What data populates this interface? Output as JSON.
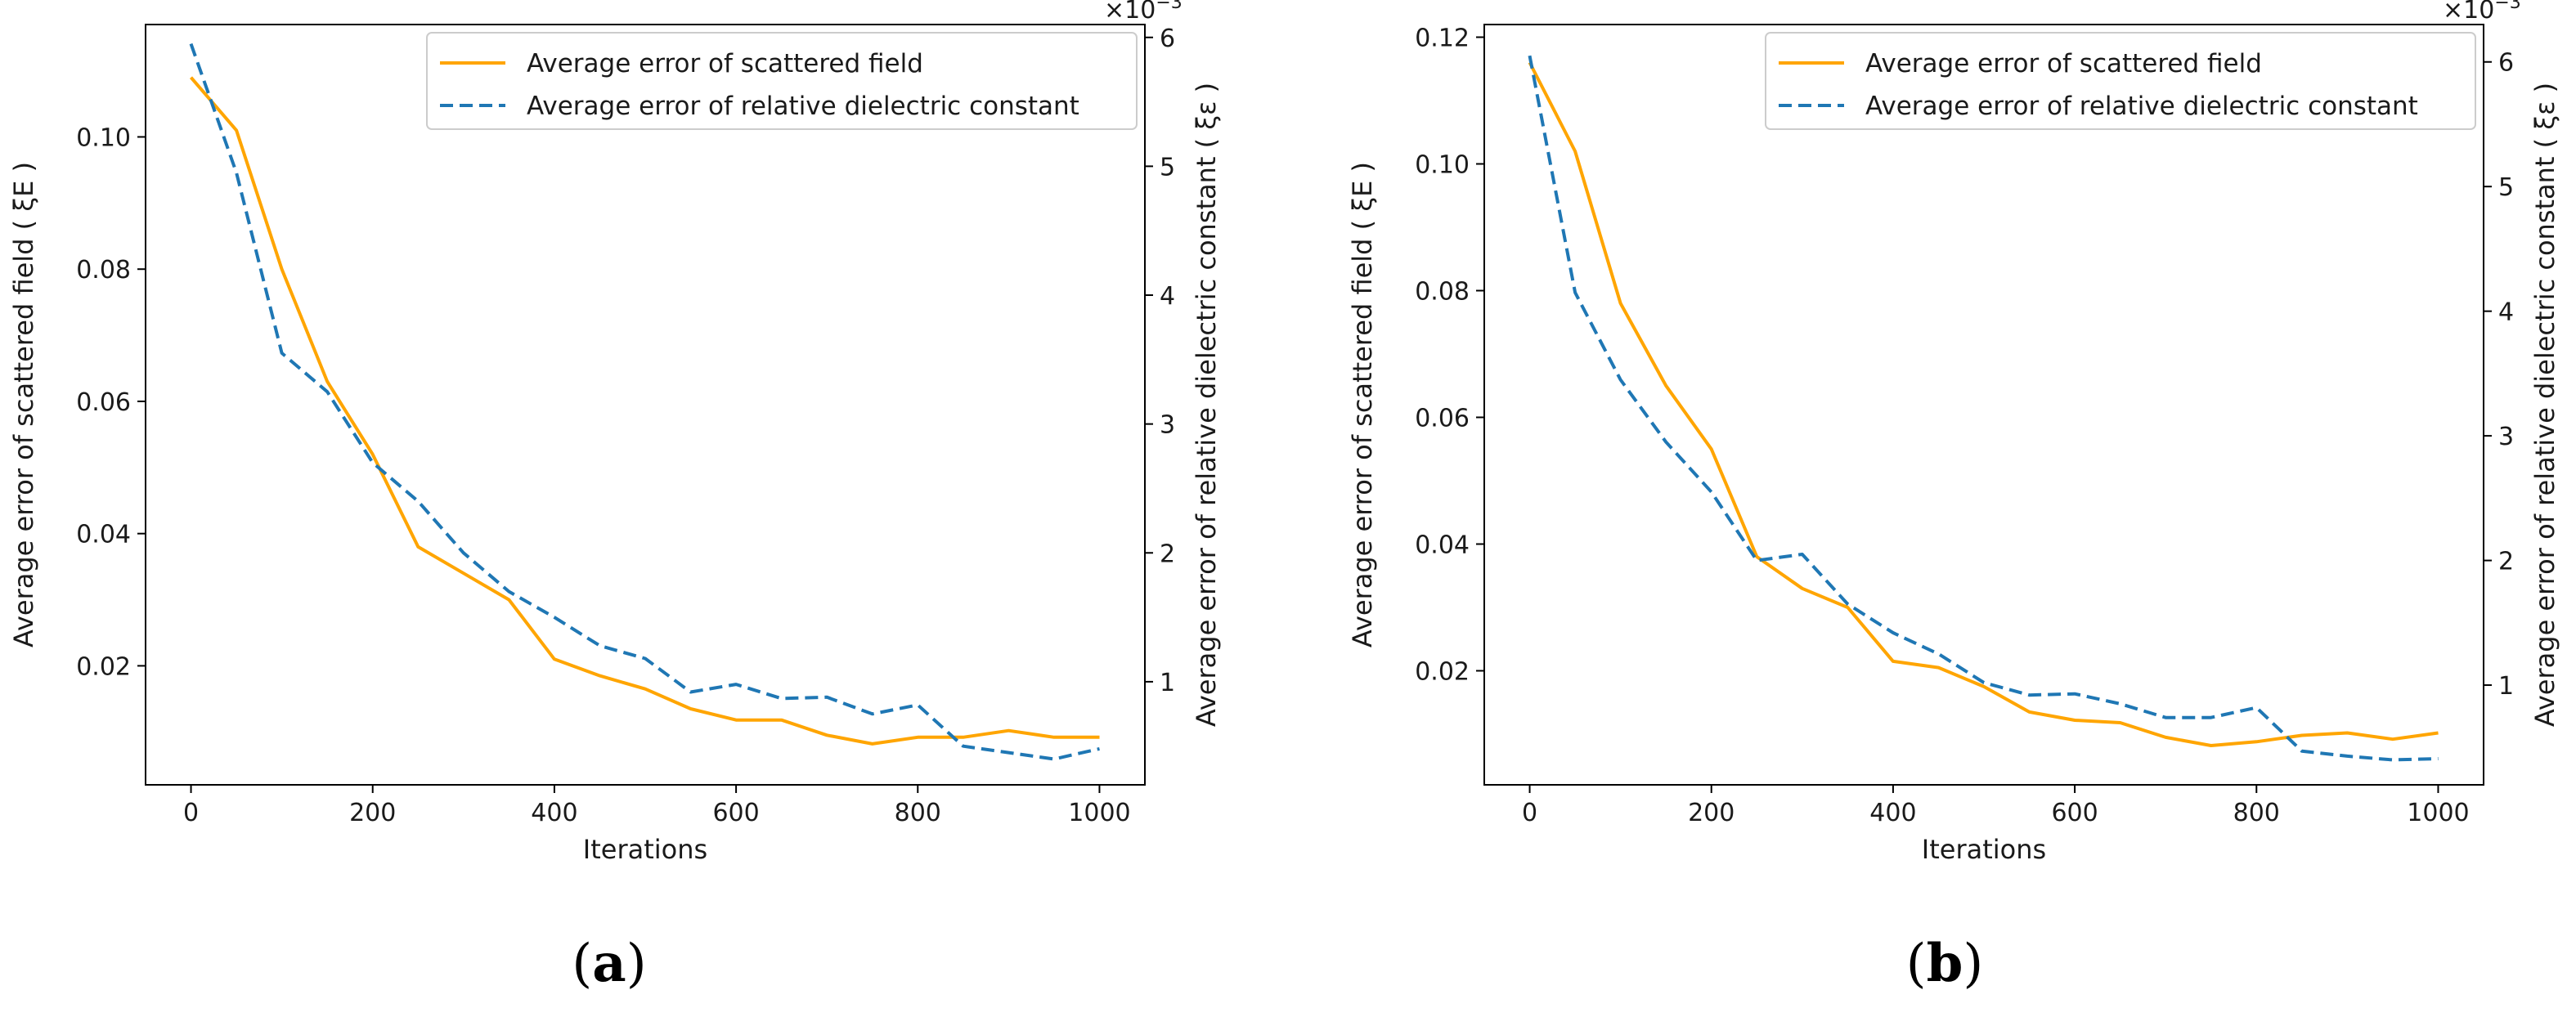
{
  "colors": {
    "field_series": "#ffa500",
    "dielectric_series": "#1f77b4",
    "axis": "#000000",
    "text": "#1a1a1a"
  },
  "chart_data": [
    {
      "type": "line",
      "panel_label": "a",
      "xlabel": "Iterations",
      "ylabel_left": "Average error of scattered field ( ξE )",
      "ylabel_right": "Average error of relative dielectric constant ( ξε )",
      "right_axis_multiplier": "×10−3",
      "xlim": [
        -50,
        1050
      ],
      "ylim_left": [
        0.002,
        0.117
      ],
      "ylim_right": [
        0.2,
        6.1
      ],
      "xticks": [
        0,
        200,
        400,
        600,
        800,
        1000
      ],
      "yticks_left": [
        0.02,
        0.04,
        0.06,
        0.08,
        0.1
      ],
      "yticks_right": [
        1,
        2,
        3,
        4,
        5,
        6
      ],
      "legend_position": "top-right",
      "x": [
        0,
        50,
        100,
        150,
        200,
        250,
        300,
        350,
        400,
        450,
        500,
        550,
        600,
        650,
        700,
        750,
        800,
        850,
        900,
        950,
        1000
      ],
      "series": [
        {
          "name": "Average error of scattered field",
          "axis": "left",
          "style": "solid",
          "values": [
            0.109,
            0.101,
            0.08,
            0.063,
            0.052,
            0.038,
            0.034,
            0.03,
            0.021,
            0.0185,
            0.0165,
            0.0135,
            0.0118,
            0.0118,
            0.0095,
            0.0082,
            0.0092,
            0.0092,
            0.0102,
            0.0092,
            0.0092
          ]
        },
        {
          "name": "Average error of relative dielectric constant",
          "axis": "right",
          "style": "dashed",
          "values": [
            5.95,
            4.95,
            3.55,
            3.25,
            2.7,
            2.4,
            2.0,
            1.7,
            1.5,
            1.28,
            1.18,
            0.92,
            0.98,
            0.87,
            0.88,
            0.75,
            0.82,
            0.5,
            0.45,
            0.4,
            0.48
          ]
        }
      ]
    },
    {
      "type": "line",
      "panel_label": "b",
      "xlabel": "Iterations",
      "ylabel_left": "Average error of scattered field ( ξE )",
      "ylabel_right": "Average error of relative dielectric constant ( ξε )",
      "right_axis_multiplier": "×10−3",
      "xlim": [
        -50,
        1050
      ],
      "ylim_left": [
        0.002,
        0.122
      ],
      "ylim_right": [
        0.2,
        6.3
      ],
      "xticks": [
        0,
        200,
        400,
        600,
        800,
        1000
      ],
      "yticks_left": [
        0.02,
        0.04,
        0.06,
        0.08,
        0.1,
        0.12
      ],
      "yticks_right": [
        1,
        2,
        3,
        4,
        5,
        6
      ],
      "legend_position": "top-right",
      "x": [
        0,
        50,
        100,
        150,
        200,
        250,
        300,
        350,
        400,
        450,
        500,
        550,
        600,
        650,
        700,
        750,
        800,
        850,
        900,
        950,
        1000
      ],
      "series": [
        {
          "name": "Average error of scattered field",
          "axis": "left",
          "style": "solid",
          "values": [
            0.116,
            0.102,
            0.078,
            0.065,
            0.055,
            0.038,
            0.033,
            0.03,
            0.0215,
            0.0205,
            0.0175,
            0.0135,
            0.0122,
            0.0118,
            0.0095,
            0.0082,
            0.0088,
            0.0098,
            0.0102,
            0.0092,
            0.0102
          ]
        },
        {
          "name": "Average error of relative dielectric constant",
          "axis": "right",
          "style": "dashed",
          "values": [
            6.05,
            4.15,
            3.45,
            2.95,
            2.55,
            2.0,
            2.05,
            1.65,
            1.42,
            1.25,
            1.02,
            0.92,
            0.93,
            0.85,
            0.74,
            0.74,
            0.82,
            0.47,
            0.43,
            0.4,
            0.41
          ]
        }
      ]
    }
  ]
}
